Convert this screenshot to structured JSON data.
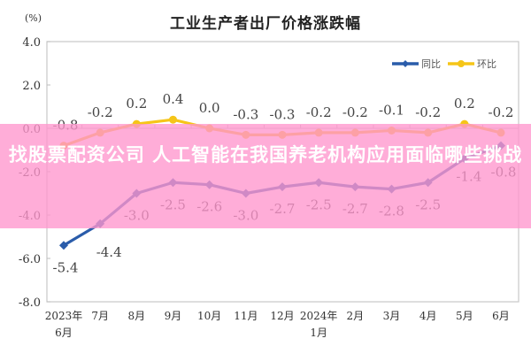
{
  "page": {
    "overlay_headline": "找股票配资公司 人工智能在我国养老机构应用面临哪些挑战"
  },
  "chart_data": {
    "type": "line",
    "title": "工业生产者出厂价格涨跌幅",
    "ylabel": "(%)",
    "xlabel": "",
    "ylim": [
      -8.0,
      4.0
    ],
    "yticks": [
      "4.0",
      "2.0",
      "0.0",
      "-2.0",
      "-4.0",
      "-6.0",
      "-8.0"
    ],
    "grid": false,
    "legend_position": "top-right",
    "categories": [
      "2023年6月",
      "7月",
      "8月",
      "9月",
      "10月",
      "11月",
      "12月",
      "2024年1月",
      "2月",
      "3月",
      "4月",
      "5月",
      "6月"
    ],
    "category_lines": [
      [
        "2023年",
        "6月"
      ],
      [
        "7月"
      ],
      [
        "8月"
      ],
      [
        "9月"
      ],
      [
        "10月"
      ],
      [
        "11月"
      ],
      [
        "12月"
      ],
      [
        "2024年",
        "1月"
      ],
      [
        "2月"
      ],
      [
        "3月"
      ],
      [
        "4月"
      ],
      [
        "5月"
      ],
      [
        "6月"
      ]
    ],
    "series": [
      {
        "name": "同比",
        "color": "#2a5caa",
        "marker": "diamond",
        "values": [
          -5.4,
          -4.4,
          -3.0,
          -2.5,
          -2.6,
          -3.0,
          -2.7,
          -2.5,
          -2.7,
          -2.8,
          -2.5,
          -1.4,
          -0.8
        ],
        "labels": [
          "-5.4",
          "-4.4",
          "-3.0",
          "-2.5",
          "-2.6",
          "-3.0",
          "-2.7",
          "-2.5",
          "-2.7",
          "-2.8",
          "-2.5",
          "-1.4",
          "-0.8"
        ]
      },
      {
        "name": "环比",
        "color": "#f5c518",
        "marker": "circle",
        "values": [
          -0.8,
          -0.2,
          0.2,
          0.4,
          0.0,
          -0.3,
          -0.3,
          -0.2,
          -0.2,
          -0.1,
          -0.2,
          0.2,
          -0.2
        ],
        "labels": [
          "-0.8",
          "-0.2",
          "0.2",
          "0.4",
          "0.0",
          "-0.3",
          "-0.3",
          "-0.2",
          "-0.2",
          "-0.1",
          "-0.2",
          "0.2",
          "-0.2"
        ]
      }
    ]
  }
}
